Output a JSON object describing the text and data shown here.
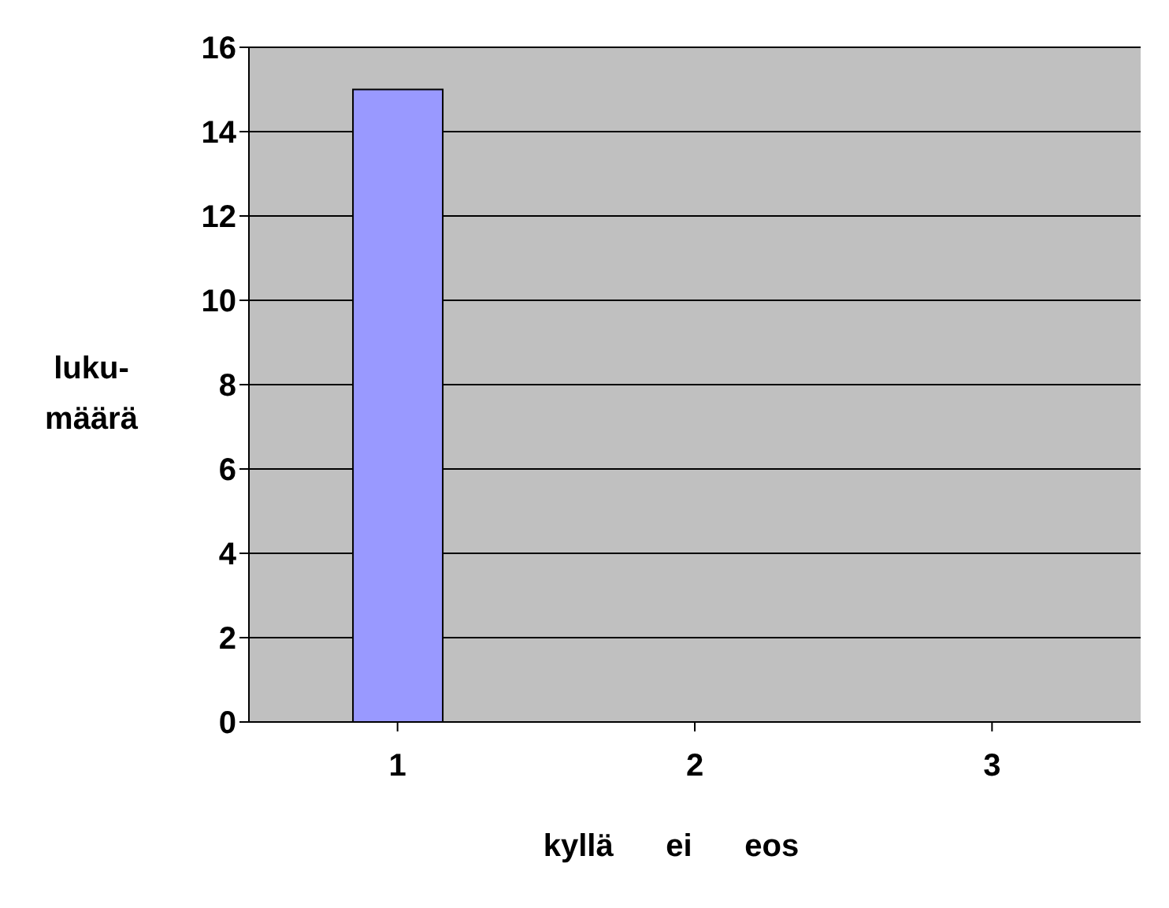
{
  "chart_data": {
    "type": "bar",
    "categories": [
      "1",
      "2",
      "3"
    ],
    "values": [
      15,
      0,
      0
    ],
    "color": "#9999ff",
    "xlabel": "kyllä      ei      eos",
    "ylabel": "luku-\nmäärä",
    "ylim": [
      0,
      16
    ],
    "yticks": [
      0,
      2,
      4,
      6,
      8,
      10,
      12,
      14,
      16
    ],
    "grid": "y"
  }
}
